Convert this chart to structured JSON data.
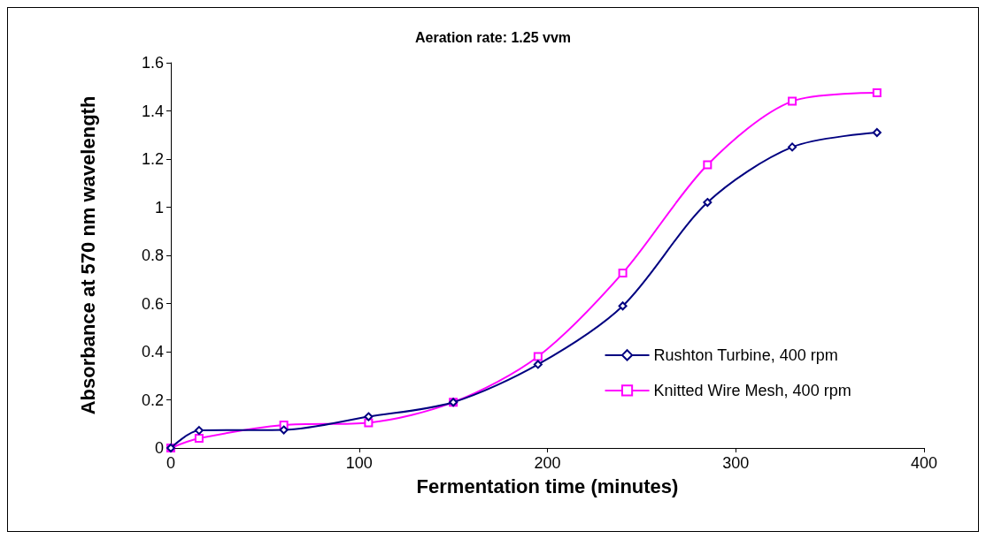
{
  "chart_data": {
    "type": "line",
    "title": "Aeration rate: 1.25 vvm",
    "xlabel": "Fermentation time (minutes)",
    "ylabel": "Absorbance at 570 nm wavelength",
    "x": [
      0,
      15,
      60,
      105,
      150,
      195,
      240,
      285,
      330,
      375
    ],
    "series": [
      {
        "name": "Rushton Turbine, 400 rpm",
        "color": "#000080",
        "marker": "diamond",
        "values": [
          0,
          0.073,
          0.075,
          0.13,
          0.19,
          0.347,
          0.59,
          1.02,
          1.25,
          1.31
        ]
      },
      {
        "name": "Knitted Wire Mesh, 400 rpm",
        "color": "#ff00ff",
        "marker": "square",
        "values": [
          0,
          0.04,
          0.095,
          0.105,
          0.19,
          0.38,
          0.727,
          1.176,
          1.44,
          1.475
        ]
      }
    ],
    "xlim": [
      0,
      400
    ],
    "xticks": [
      0,
      100,
      200,
      300,
      400
    ],
    "ylim": [
      0,
      1.6
    ],
    "yticks": [
      0,
      0.2,
      0.4,
      0.6,
      0.8,
      1,
      1.2,
      1.4,
      1.6
    ],
    "grid": false,
    "legend": "right",
    "line_style": "solid"
  }
}
